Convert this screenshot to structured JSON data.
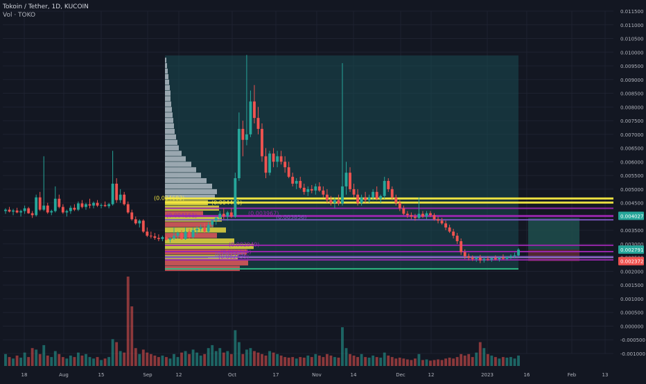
{
  "header": {
    "symbol": "Tokoin / Tether, 1D, KUCOIN",
    "volume_label": "Vol · TOKO"
  },
  "colors": {
    "background": "#131722",
    "up": "#26a69a",
    "down": "#ef5350",
    "text": "#b2b5be",
    "grid": "#1e2230",
    "teal_zone": "#1a4a52",
    "red_zone": "#5a2a33",
    "yellow_line": "#f5e942",
    "purple_line": "#9c27b0",
    "violet_line": "#7e57c2",
    "green_line": "#2ebd85",
    "vp_light": "#b2bcc4",
    "vp_yellow": "#e6d93f",
    "vp_red": "#e05a5a"
  },
  "chart_data": {
    "type": "candlestick",
    "title": "Tokoin / Tether, 1D, KUCOIN",
    "ylim": [
      -0.001,
      0.0115
    ],
    "y_ticks": [
      "0.011500",
      "0.011000",
      "0.010500",
      "0.010000",
      "0.009500",
      "0.009000",
      "0.008500",
      "0.008000",
      "0.007500",
      "0.007000",
      "0.006500",
      "0.006000",
      "0.005500",
      "0.005000",
      "0.004500",
      "0.004000",
      "0.003500",
      "0.003000",
      "0.002500",
      "0.002000",
      "0.001500",
      "0.001000",
      "0.000500",
      "0.000000",
      "-0.000500",
      "-0.001000"
    ],
    "x_ticks": [
      "18",
      "Aug",
      "15",
      "Sep",
      "12",
      "Oct",
      "17",
      "Nov",
      "14",
      "Dec",
      "12",
      "2023",
      "16",
      "Feb",
      "13"
    ],
    "price_badges": [
      {
        "label": "0.004027",
        "value": 0.004027,
        "color": "#26a69a"
      },
      {
        "label": "0.002791",
        "value": 0.002791,
        "color": "#26a69a"
      },
      {
        "label": "0.002372",
        "value": 0.002372,
        "color": "#ef5350"
      }
    ],
    "level_labels": [
      "(0.004683)",
      "(0.004461)",
      "(0.004161)",
      "(0.003967)",
      "(0.002949)",
      "(0.002734)",
      "(0.002459)",
      "(0.003856)",
      "(0.002593)"
    ],
    "candles": [
      [
        0.0042,
        0.0043,
        0.0041,
        0.00425
      ],
      [
        0.00425,
        0.00435,
        0.00415,
        0.00418
      ],
      [
        0.00418,
        0.00428,
        0.00405,
        0.00422
      ],
      [
        0.00422,
        0.00432,
        0.00412,
        0.00415
      ],
      [
        0.00415,
        0.00425,
        0.004,
        0.0042
      ],
      [
        0.0042,
        0.0044,
        0.0041,
        0.0043
      ],
      [
        0.0043,
        0.00435,
        0.0041,
        0.00412
      ],
      [
        0.00412,
        0.0042,
        0.00395,
        0.00405
      ],
      [
        0.00405,
        0.0048,
        0.004,
        0.0047
      ],
      [
        0.0047,
        0.0049,
        0.0042,
        0.00425
      ],
      [
        0.00425,
        0.0062,
        0.0042,
        0.0044
      ],
      [
        0.0044,
        0.0045,
        0.0041,
        0.00415
      ],
      [
        0.00415,
        0.00425,
        0.00405,
        0.0042
      ],
      [
        0.0042,
        0.0051,
        0.00415,
        0.00465
      ],
      [
        0.00465,
        0.0048,
        0.0043,
        0.00435
      ],
      [
        0.00435,
        0.00445,
        0.0041,
        0.00415
      ],
      [
        0.00415,
        0.00425,
        0.004,
        0.0042
      ],
      [
        0.0042,
        0.0044,
        0.0041,
        0.00432
      ],
      [
        0.00432,
        0.00445,
        0.0042,
        0.00425
      ],
      [
        0.00425,
        0.00455,
        0.0042,
        0.00448
      ],
      [
        0.00448,
        0.0046,
        0.0043,
        0.00435
      ],
      [
        0.00435,
        0.0045,
        0.00425,
        0.00445
      ],
      [
        0.00445,
        0.00465,
        0.0043,
        0.0044
      ],
      [
        0.0044,
        0.00455,
        0.0043,
        0.0045
      ],
      [
        0.0045,
        0.0046,
        0.00435,
        0.0044
      ],
      [
        0.0044,
        0.00448,
        0.0043,
        0.00442
      ],
      [
        0.00442,
        0.00455,
        0.00435,
        0.00438
      ],
      [
        0.00438,
        0.0045,
        0.0043,
        0.00445
      ],
      [
        0.00445,
        0.0064,
        0.0044,
        0.0052
      ],
      [
        0.0052,
        0.0054,
        0.0045,
        0.0046
      ],
      [
        0.0046,
        0.005,
        0.0045,
        0.0048
      ],
      [
        0.0048,
        0.0049,
        0.0044,
        0.00445
      ],
      [
        0.00445,
        0.00455,
        0.0041,
        0.00415
      ],
      [
        0.00415,
        0.00425,
        0.00385,
        0.0039
      ],
      [
        0.0039,
        0.004,
        0.0037,
        0.00375
      ],
      [
        0.00375,
        0.0039,
        0.0036,
        0.00385
      ],
      [
        0.00385,
        0.0039,
        0.0034,
        0.00345
      ],
      [
        0.00345,
        0.0036,
        0.00325,
        0.0033
      ],
      [
        0.0033,
        0.00345,
        0.0032,
        0.00328
      ],
      [
        0.00328,
        0.0034,
        0.00315,
        0.00322
      ],
      [
        0.00322,
        0.00335,
        0.0031,
        0.00318
      ],
      [
        0.00318,
        0.0033,
        0.0031,
        0.00325
      ],
      [
        0.00325,
        0.0033,
        0.00312,
        0.00315
      ],
      [
        0.00315,
        0.00325,
        0.00305,
        0.0032
      ],
      [
        0.0032,
        0.0036,
        0.00315,
        0.0033
      ],
      [
        0.0033,
        0.00345,
        0.0032,
        0.0034
      ],
      [
        0.0034,
        0.0035,
        0.00315,
        0.00318
      ],
      [
        0.00318,
        0.0036,
        0.00315,
        0.00345
      ],
      [
        0.00345,
        0.00355,
        0.0032,
        0.00325
      ],
      [
        0.00325,
        0.0036,
        0.0032,
        0.0035
      ],
      [
        0.0035,
        0.00365,
        0.00335,
        0.00355
      ],
      [
        0.00355,
        0.0037,
        0.00345,
        0.0036
      ],
      [
        0.0036,
        0.00375,
        0.0034,
        0.00345
      ],
      [
        0.00345,
        0.0038,
        0.0034,
        0.0037
      ],
      [
        0.0037,
        0.0039,
        0.0036,
        0.00385
      ],
      [
        0.00385,
        0.004,
        0.0037,
        0.00395
      ],
      [
        0.00395,
        0.0042,
        0.00385,
        0.0041
      ],
      [
        0.0041,
        0.0043,
        0.0039,
        0.004
      ],
      [
        0.004,
        0.0042,
        0.00385,
        0.00415
      ],
      [
        0.00415,
        0.0043,
        0.00395,
        0.004
      ],
      [
        0.004,
        0.0056,
        0.00395,
        0.0054
      ],
      [
        0.0054,
        0.0078,
        0.0053,
        0.0072
      ],
      [
        0.0072,
        0.0075,
        0.0062,
        0.0068
      ],
      [
        0.0068,
        0.0099,
        0.0066,
        0.007
      ],
      [
        0.007,
        0.0086,
        0.0069,
        0.0082
      ],
      [
        0.0082,
        0.0088,
        0.0074,
        0.0076
      ],
      [
        0.0076,
        0.008,
        0.007,
        0.0072
      ],
      [
        0.0072,
        0.0074,
        0.006,
        0.0062
      ],
      [
        0.0062,
        0.0065,
        0.0054,
        0.0056
      ],
      [
        0.0056,
        0.0064,
        0.0055,
        0.0063
      ],
      [
        0.0063,
        0.0065,
        0.0058,
        0.006
      ],
      [
        0.006,
        0.0064,
        0.0058,
        0.0062
      ],
      [
        0.0062,
        0.0064,
        0.0059,
        0.006
      ],
      [
        0.006,
        0.0062,
        0.0056,
        0.0058
      ],
      [
        0.0058,
        0.006,
        0.0054,
        0.00545
      ],
      [
        0.00545,
        0.0056,
        0.0051,
        0.0052
      ],
      [
        0.0052,
        0.0054,
        0.005,
        0.0053
      ],
      [
        0.0053,
        0.00545,
        0.005,
        0.00505
      ],
      [
        0.00505,
        0.0052,
        0.0048,
        0.0049
      ],
      [
        0.0049,
        0.0051,
        0.00475,
        0.005
      ],
      [
        0.005,
        0.00515,
        0.00485,
        0.00495
      ],
      [
        0.00495,
        0.0052,
        0.0048,
        0.0051
      ],
      [
        0.0051,
        0.00525,
        0.0049,
        0.00495
      ],
      [
        0.00495,
        0.0051,
        0.0047,
        0.0048
      ],
      [
        0.0048,
        0.005,
        0.0045,
        0.0046
      ],
      [
        0.0046,
        0.00475,
        0.0044,
        0.0045
      ],
      [
        0.0045,
        0.0047,
        0.0043,
        0.0046
      ],
      [
        0.0046,
        0.0048,
        0.0044,
        0.00448
      ],
      [
        0.00448,
        0.0096,
        0.0044,
        0.0051
      ],
      [
        0.0051,
        0.006,
        0.0048,
        0.0056
      ],
      [
        0.0056,
        0.0058,
        0.0049,
        0.005
      ],
      [
        0.005,
        0.0052,
        0.0047,
        0.0048
      ],
      [
        0.0048,
        0.005,
        0.0044,
        0.0045
      ],
      [
        0.0045,
        0.0048,
        0.0044,
        0.0047
      ],
      [
        0.0047,
        0.0049,
        0.0045,
        0.0046
      ],
      [
        0.0046,
        0.0048,
        0.0045,
        0.0047
      ],
      [
        0.0047,
        0.005,
        0.0046,
        0.0049
      ],
      [
        0.0049,
        0.0051,
        0.0046,
        0.00465
      ],
      [
        0.00465,
        0.0048,
        0.0045,
        0.00475
      ],
      [
        0.00475,
        0.00545,
        0.00465,
        0.0053
      ],
      [
        0.0053,
        0.0054,
        0.0049,
        0.005
      ],
      [
        0.005,
        0.0051,
        0.0046,
        0.0047
      ],
      [
        0.0047,
        0.0048,
        0.0044,
        0.0045
      ],
      [
        0.0045,
        0.0046,
        0.0042,
        0.0043
      ],
      [
        0.0043,
        0.0044,
        0.00405,
        0.0041
      ],
      [
        0.0041,
        0.0042,
        0.00395,
        0.00405
      ],
      [
        0.00405,
        0.00415,
        0.0039,
        0.004
      ],
      [
        0.004,
        0.0041,
        0.00385,
        0.00395
      ],
      [
        0.00395,
        0.0047,
        0.0039,
        0.0041
      ],
      [
        0.0041,
        0.0042,
        0.00395,
        0.004
      ],
      [
        0.004,
        0.0042,
        0.0039,
        0.00412
      ],
      [
        0.00412,
        0.0042,
        0.00398,
        0.00405
      ],
      [
        0.00405,
        0.00412,
        0.00385,
        0.0039
      ],
      [
        0.0039,
        0.004,
        0.00375,
        0.00385
      ],
      [
        0.00385,
        0.00395,
        0.0037,
        0.00375
      ],
      [
        0.00375,
        0.00385,
        0.0035,
        0.0036
      ],
      [
        0.0036,
        0.0037,
        0.0034,
        0.00345
      ],
      [
        0.00345,
        0.00355,
        0.0032,
        0.0033
      ],
      [
        0.0033,
        0.0034,
        0.003,
        0.0031
      ],
      [
        0.0031,
        0.0032,
        0.0026,
        0.0027
      ],
      [
        0.0027,
        0.0028,
        0.00245,
        0.00255
      ],
      [
        0.00255,
        0.00265,
        0.0024,
        0.0025
      ],
      [
        0.0025,
        0.00258,
        0.00238,
        0.00245
      ],
      [
        0.00245,
        0.00255,
        0.00235,
        0.0025
      ],
      [
        0.0025,
        0.0026,
        0.0023,
        0.0024
      ],
      [
        0.0024,
        0.00252,
        0.00232,
        0.00245
      ],
      [
        0.00245,
        0.00255,
        0.00238,
        0.00242
      ],
      [
        0.00242,
        0.0025,
        0.00235,
        0.00248
      ],
      [
        0.00248,
        0.00258,
        0.0024,
        0.00244
      ],
      [
        0.00244,
        0.00252,
        0.00236,
        0.0025
      ],
      [
        0.0025,
        0.00262,
        0.00242,
        0.00246
      ],
      [
        0.00246,
        0.00255,
        0.0024,
        0.00252
      ],
      [
        0.00252,
        0.00262,
        0.00245,
        0.00256
      ],
      [
        0.00256,
        0.00268,
        0.00248,
        0.00258
      ],
      [
        0.00258,
        0.00285,
        0.00252,
        0.00279
      ]
    ],
    "volumes": [
      [
        40,
        0
      ],
      [
        30,
        1
      ],
      [
        25,
        0
      ],
      [
        35,
        1
      ],
      [
        28,
        0
      ],
      [
        45,
        0
      ],
      [
        30,
        1
      ],
      [
        60,
        1
      ],
      [
        55,
        0
      ],
      [
        40,
        1
      ],
      [
        70,
        0
      ],
      [
        35,
        1
      ],
      [
        30,
        0
      ],
      [
        50,
        0
      ],
      [
        40,
        1
      ],
      [
        30,
        1
      ],
      [
        25,
        0
      ],
      [
        35,
        0
      ],
      [
        30,
        1
      ],
      [
        45,
        0
      ],
      [
        35,
        1
      ],
      [
        40,
        0
      ],
      [
        30,
        0
      ],
      [
        25,
        0
      ],
      [
        30,
        1
      ],
      [
        20,
        0
      ],
      [
        25,
        1
      ],
      [
        30,
        0
      ],
      [
        90,
        0
      ],
      [
        80,
        1
      ],
      [
        50,
        0
      ],
      [
        45,
        1
      ],
      [
        300,
        1
      ],
      [
        200,
        1
      ],
      [
        60,
        1
      ],
      [
        40,
        0
      ],
      [
        55,
        1
      ],
      [
        45,
        1
      ],
      [
        40,
        1
      ],
      [
        35,
        1
      ],
      [
        30,
        1
      ],
      [
        35,
        0
      ],
      [
        30,
        1
      ],
      [
        25,
        0
      ],
      [
        40,
        0
      ],
      [
        30,
        0
      ],
      [
        45,
        1
      ],
      [
        50,
        0
      ],
      [
        40,
        1
      ],
      [
        55,
        0
      ],
      [
        45,
        0
      ],
      [
        35,
        0
      ],
      [
        40,
        1
      ],
      [
        60,
        0
      ],
      [
        70,
        0
      ],
      [
        50,
        0
      ],
      [
        60,
        0
      ],
      [
        45,
        1
      ],
      [
        50,
        0
      ],
      [
        40,
        1
      ],
      [
        120,
        0
      ],
      [
        80,
        0
      ],
      [
        40,
        1
      ],
      [
        55,
        0
      ],
      [
        60,
        0
      ],
      [
        50,
        1
      ],
      [
        45,
        1
      ],
      [
        40,
        1
      ],
      [
        35,
        1
      ],
      [
        50,
        0
      ],
      [
        45,
        1
      ],
      [
        40,
        0
      ],
      [
        35,
        1
      ],
      [
        30,
        1
      ],
      [
        28,
        1
      ],
      [
        30,
        1
      ],
      [
        25,
        0
      ],
      [
        30,
        1
      ],
      [
        28,
        1
      ],
      [
        35,
        0
      ],
      [
        30,
        1
      ],
      [
        40,
        0
      ],
      [
        35,
        1
      ],
      [
        30,
        1
      ],
      [
        40,
        1
      ],
      [
        35,
        1
      ],
      [
        30,
        0
      ],
      [
        28,
        1
      ],
      [
        130,
        0
      ],
      [
        60,
        0
      ],
      [
        40,
        1
      ],
      [
        35,
        1
      ],
      [
        30,
        1
      ],
      [
        40,
        0
      ],
      [
        30,
        1
      ],
      [
        28,
        0
      ],
      [
        35,
        0
      ],
      [
        30,
        1
      ],
      [
        28,
        0
      ],
      [
        45,
        0
      ],
      [
        35,
        1
      ],
      [
        30,
        1
      ],
      [
        25,
        1
      ],
      [
        28,
        1
      ],
      [
        25,
        1
      ],
      [
        22,
        1
      ],
      [
        20,
        1
      ],
      [
        25,
        1
      ],
      [
        40,
        0
      ],
      [
        20,
        1
      ],
      [
        22,
        0
      ],
      [
        18,
        1
      ],
      [
        20,
        1
      ],
      [
        22,
        1
      ],
      [
        20,
        1
      ],
      [
        25,
        1
      ],
      [
        28,
        1
      ],
      [
        25,
        1
      ],
      [
        30,
        1
      ],
      [
        40,
        1
      ],
      [
        35,
        1
      ],
      [
        40,
        1
      ],
      [
        30,
        1
      ],
      [
        45,
        0
      ],
      [
        80,
        1
      ],
      [
        60,
        0
      ],
      [
        40,
        1
      ],
      [
        35,
        0
      ],
      [
        30,
        1
      ],
      [
        25,
        0
      ],
      [
        30,
        1
      ],
      [
        28,
        0
      ],
      [
        30,
        0
      ],
      [
        25,
        0
      ],
      [
        35,
        0
      ]
    ]
  }
}
